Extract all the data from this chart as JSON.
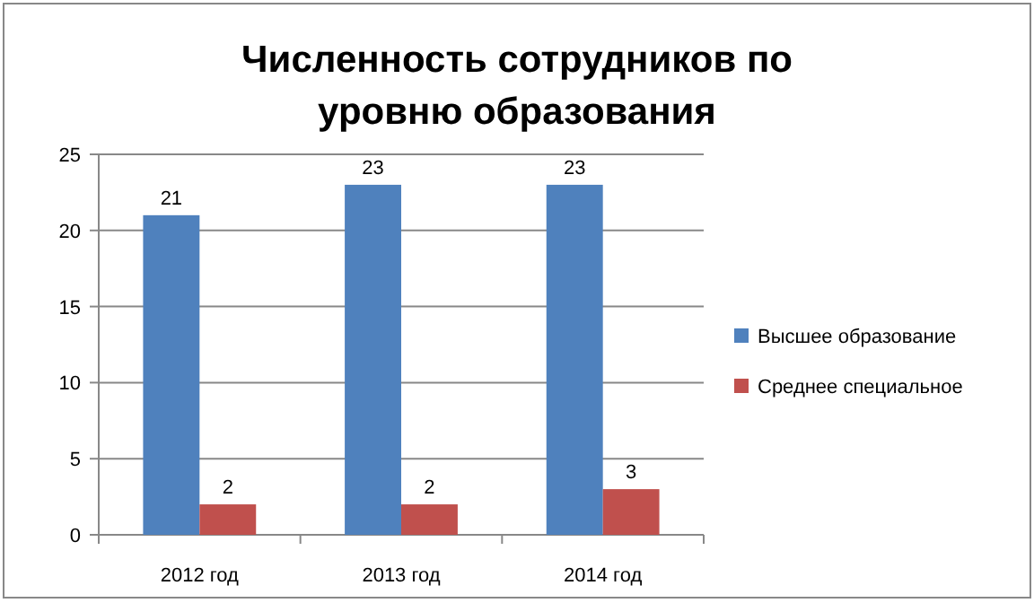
{
  "chart_data": {
    "type": "bar",
    "title": "Численность сотрудников по уровню образования",
    "categories": [
      "2012 год",
      "2013 год",
      "2014 год"
    ],
    "series": [
      {
        "name": "Высшее образование",
        "color": "#4f81bd",
        "values": [
          21,
          23,
          23
        ]
      },
      {
        "name": "Среднее специальное",
        "color": "#c0504d",
        "values": [
          2,
          2,
          3
        ]
      }
    ],
    "ylim": [
      0,
      25
    ],
    "yticks": [
      0,
      5,
      10,
      15,
      20,
      25
    ],
    "grid": "y",
    "legend": "right",
    "data_labels": true
  }
}
